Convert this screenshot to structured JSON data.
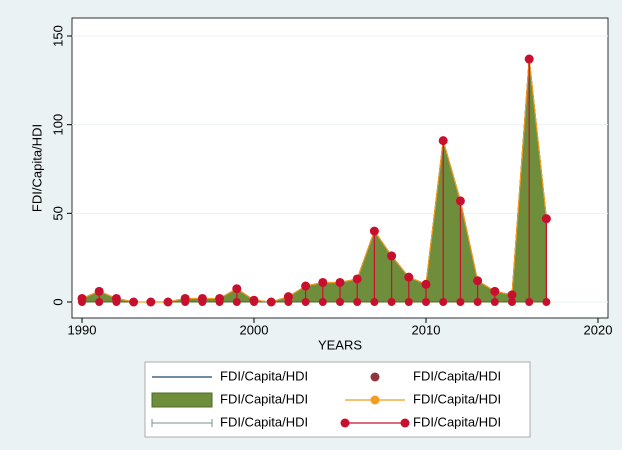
{
  "chart_data": {
    "type": "area-spike",
    "y_label": "FDI/Capita/HDI",
    "x_label": "YEARS",
    "x": [
      1990,
      1991,
      1992,
      1993,
      1994,
      1995,
      1996,
      1997,
      1998,
      1999,
      2000,
      2001,
      2002,
      2003,
      2004,
      2005,
      2006,
      2007,
      2008,
      2009,
      2010,
      2011,
      2012,
      2013,
      2014,
      2015,
      2016,
      2017
    ],
    "values": [
      2,
      6,
      2,
      0,
      0,
      0,
      2,
      2,
      2,
      7.5,
      1,
      0,
      3,
      9,
      11,
      11,
      13,
      40,
      26,
      14,
      10,
      91,
      57,
      12,
      6,
      4,
      137,
      47
    ],
    "xlim": [
      1990,
      2020
    ],
    "xticks": [
      1990,
      2000,
      2010,
      2020
    ],
    "ylim": [
      0,
      150
    ],
    "yticks": [
      0,
      50,
      100,
      150
    ],
    "grid": true,
    "series": [
      {
        "name": "FDI/Capita/HDI",
        "style": "line",
        "color": "#1a476f"
      },
      {
        "name": "FDI/Capita/HDI",
        "style": "scatter",
        "color": "#90353b"
      },
      {
        "name": "FDI/Capita/HDI",
        "style": "area",
        "color": "#6e8e3c"
      },
      {
        "name": "FDI/Capita/HDI",
        "style": "connected",
        "color": "#f39c1f"
      },
      {
        "name": "FDI/Capita/HDI",
        "style": "rcap",
        "color": "#7d8f8f"
      },
      {
        "name": "FDI/Capita/HDI",
        "style": "dropline",
        "color": "#c8102e"
      }
    ]
  }
}
